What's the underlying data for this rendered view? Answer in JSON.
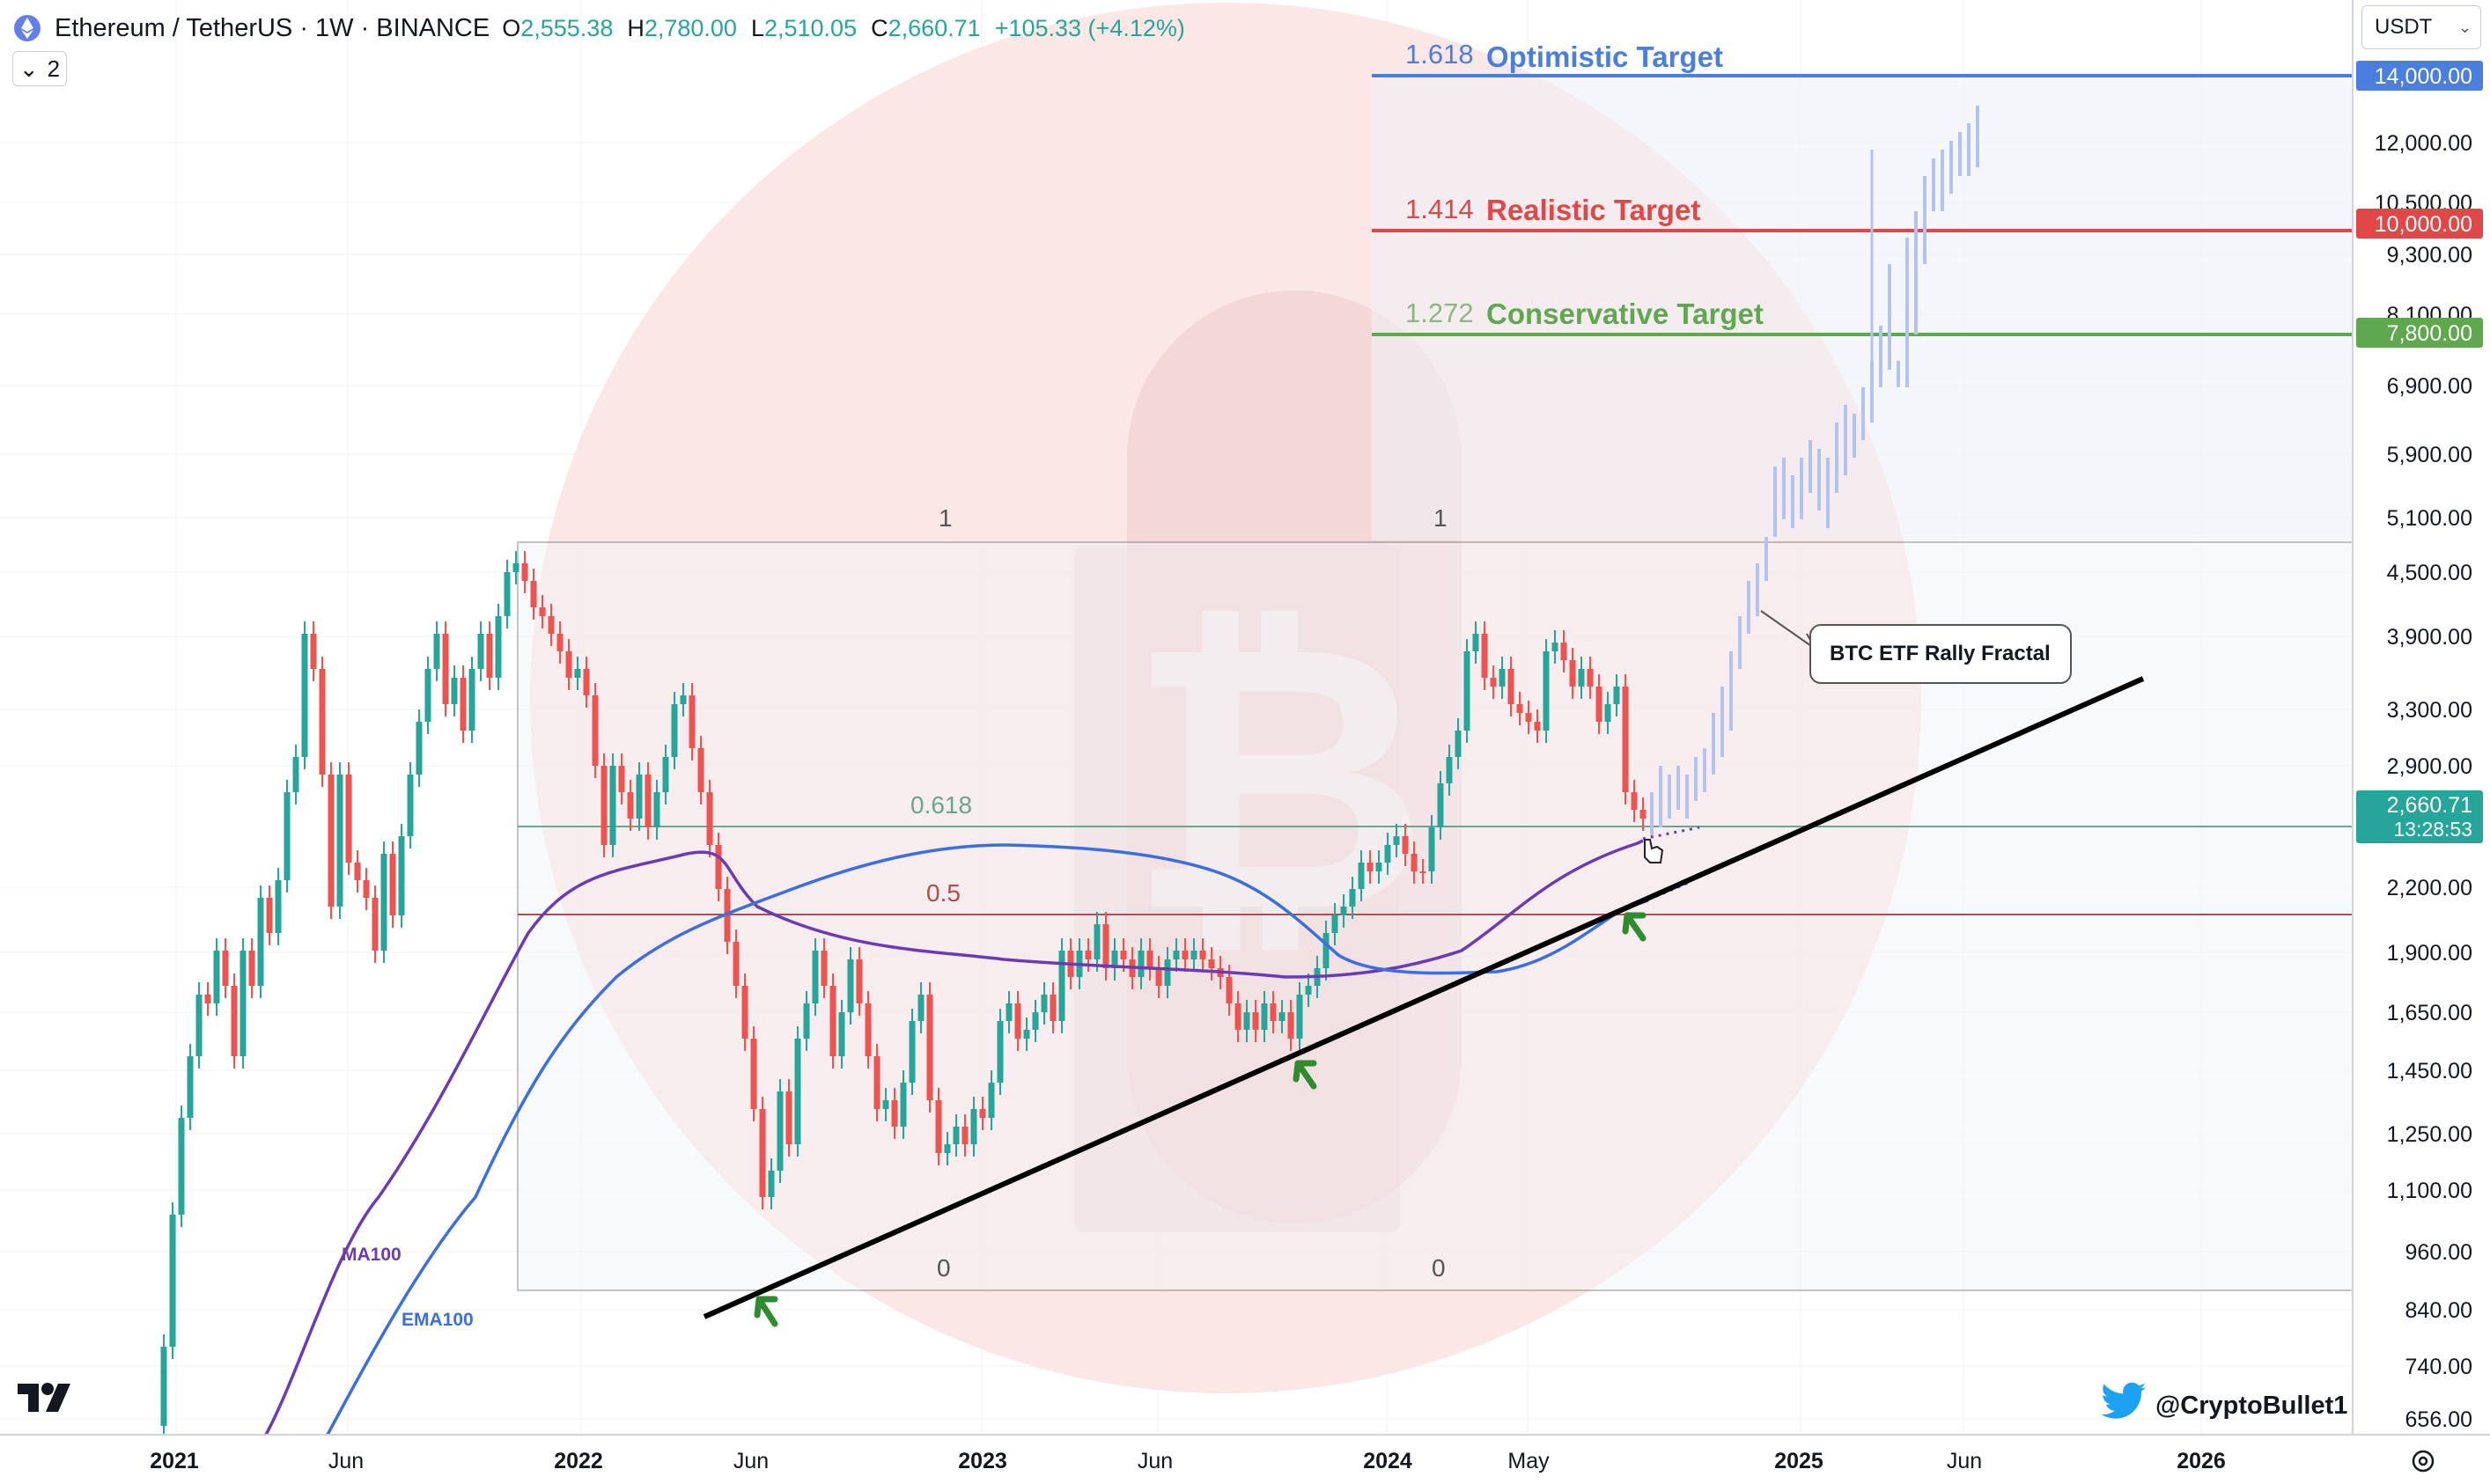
{
  "header": {
    "symbol": "Ethereum / TetherUS · 1W · BINANCE",
    "ohlc": [
      {
        "k": "O",
        "v": "2,555.38"
      },
      {
        "k": "H",
        "v": "2,780.00"
      },
      {
        "k": "L",
        "v": "2,510.05"
      },
      {
        "k": "C",
        "v": "2,660.71"
      }
    ],
    "change": "+105.33 (+4.12%)",
    "indicator_count": "2"
  },
  "currency": "USDT",
  "price_axis": {
    "ticks": [
      "12,000.00",
      "10,500.00",
      "9,300.00",
      "8,100.00",
      "6,900.00",
      "5,900.00",
      "5,100.00",
      "4,500.00",
      "3,900.00",
      "3,300.00",
      "2,900.00",
      "2,200.00",
      "1,900.00",
      "1,650.00",
      "1,450.00",
      "1,250.00",
      "1,100.00",
      "960.00",
      "840.00",
      "740.00",
      "656.00"
    ],
    "badges": [
      {
        "text": "14,000.00",
        "color": "#4a7fe0"
      },
      {
        "text": "10,000.00",
        "color": "#e04848"
      },
      {
        "text": "7,800.00",
        "color": "#5ea84e"
      }
    ],
    "last_price": "2,660.71",
    "countdown": "13:28:53"
  },
  "time_axis": {
    "labels": [
      "2021",
      "Jun",
      "2022",
      "Jun",
      "2023",
      "Jun",
      "2024",
      "May",
      "2025",
      "Jun",
      "2026"
    ]
  },
  "targets": [
    {
      "ratio": "1.618",
      "label": "Optimistic Target",
      "color": "#4a7fe0"
    },
    {
      "ratio": "1.414",
      "label": "Realistic Target",
      "color": "#e04848"
    },
    {
      "ratio": "1.272",
      "label": "Conservative Target",
      "color": "#5ea84e"
    }
  ],
  "fib_labels": {
    "top_left": "1",
    "top_right": "1",
    "mid_618": "0.618",
    "mid_05": "0.5",
    "bottom_left": "0",
    "bottom_right": "0"
  },
  "ma_labels": {
    "ma": "MA100",
    "ema": "EMA100"
  },
  "callout": "BTC ETF Rally Fractal",
  "handle": "@CryptoBullet1",
  "colors": {
    "up": "#26a69a",
    "down": "#ef5350",
    "ma": "#6a3bb5",
    "ema": "#3b6ee0",
    "fractal": "#b3c2ee",
    "trendline": "#000000",
    "arrow": "#2e8b2e",
    "fib_618": "#6aa58e",
    "fib_05": "#b84a4a"
  },
  "icons": [
    "ethereum-logo-icon",
    "chevron-down-icon",
    "tradingview-logo-icon",
    "twitter-bird-icon",
    "gear-icon",
    "cursor-hand-icon",
    "bitcoin-watermark-icon"
  ]
}
